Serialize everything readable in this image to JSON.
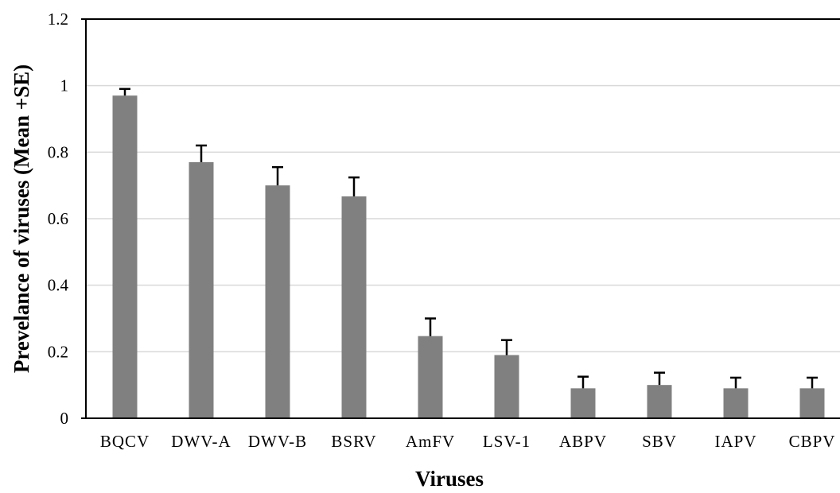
{
  "chart_data": {
    "type": "bar",
    "title": "",
    "xlabel": "Viruses",
    "ylabel": "Prevelance of viruses (Mean +SE)",
    "ylim": [
      0,
      1.2
    ],
    "yticks": [
      "0",
      "0.2",
      "0.4",
      "0.6",
      "0.8",
      "1",
      "1.2"
    ],
    "grid": true,
    "legend": "none",
    "categories": [
      "BQCV",
      "DWV-A",
      "DWV-B",
      "BSRV",
      "AmFV",
      "LSV-1",
      "ABPV",
      "SBV",
      "IAPV",
      "CBPV"
    ],
    "series": [
      {
        "values": [
          0.97,
          0.77,
          0.7,
          0.667,
          0.247,
          0.19,
          0.09,
          0.1,
          0.09,
          0.09
        ],
        "error_plus": [
          0.02,
          0.05,
          0.055,
          0.057,
          0.053,
          0.045,
          0.035,
          0.037,
          0.032,
          0.032
        ]
      }
    ],
    "colors": {
      "bar": "#808080",
      "error": "#000000",
      "grid": "#d9d9d9",
      "axis": "#000000"
    }
  }
}
